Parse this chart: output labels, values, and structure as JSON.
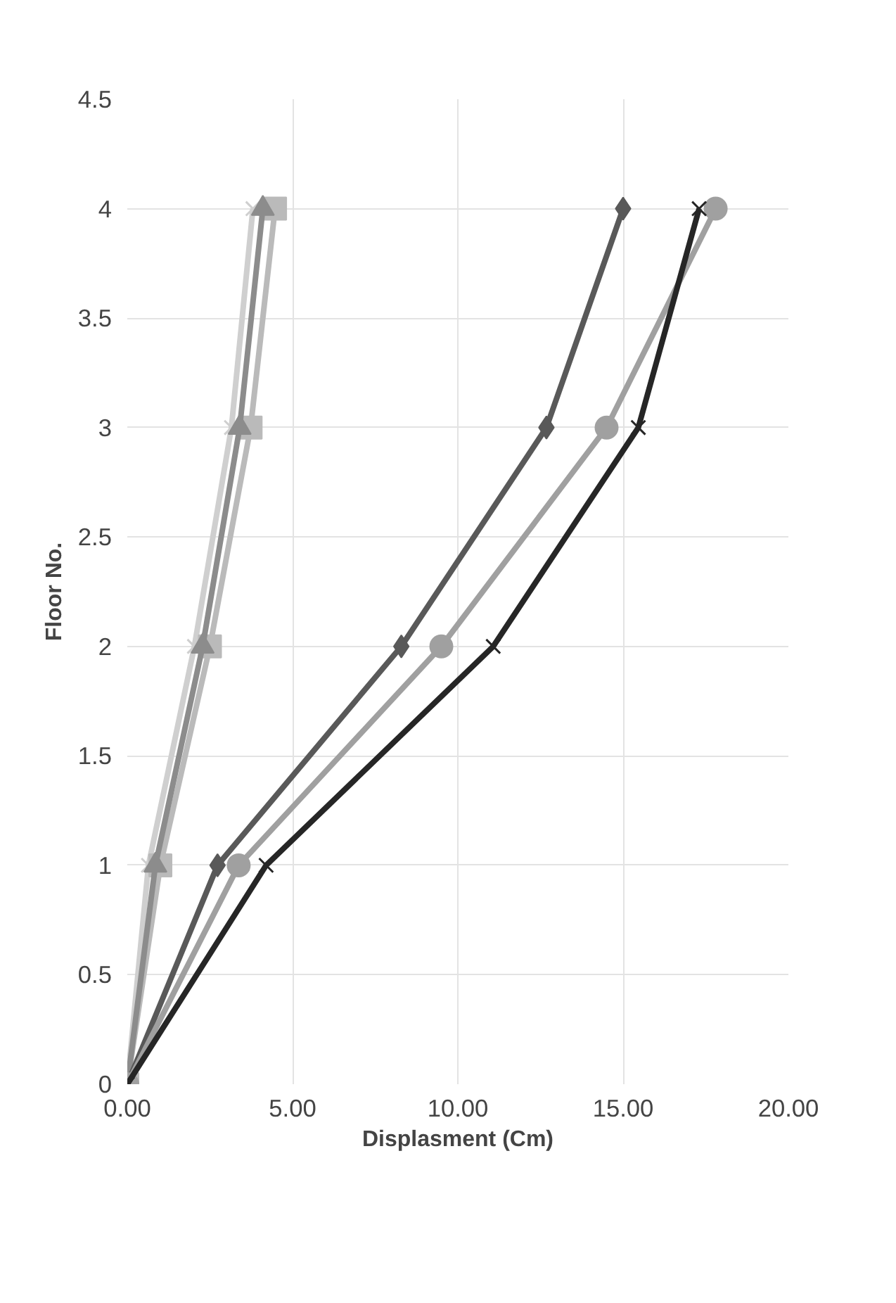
{
  "chart_data": {
    "type": "line",
    "xlabel": "Displasment (Cm)",
    "ylabel": "Floor No.",
    "xlim": [
      0,
      20
    ],
    "ylim": [
      0,
      4.5
    ],
    "xticks": [
      {
        "value": 0,
        "label": "0.00"
      },
      {
        "value": 5,
        "label": "5.00"
      },
      {
        "value": 10,
        "label": "10.00"
      },
      {
        "value": 15,
        "label": "15.00"
      },
      {
        "value": 20,
        "label": "20.00"
      }
    ],
    "yticks": [
      0,
      0.5,
      1,
      1.5,
      2,
      2.5,
      3,
      3.5,
      4,
      4.5
    ],
    "grid": true,
    "orientation": "horizontal",
    "line_style": "solid",
    "x": [
      0,
      1,
      2,
      3,
      4
    ],
    "series": [
      {
        "color": "#cfcfcf",
        "marker": "cross",
        "values": [
          0,
          0.64,
          2.03,
          3.15,
          3.8
        ]
      },
      {
        "color": "#bababa",
        "marker": "square",
        "values": [
          0,
          1.0,
          2.5,
          3.73,
          4.47
        ]
      },
      {
        "color": "#8c8c8c",
        "marker": "triangle",
        "values": [
          0,
          0.85,
          2.28,
          3.4,
          4.1
        ]
      },
      {
        "color": "#595959",
        "marker": "diamond",
        "values": [
          0,
          2.73,
          8.29,
          12.68,
          15.0
        ]
      },
      {
        "color": "#a0a0a0",
        "marker": "circle",
        "values": [
          0,
          3.37,
          9.5,
          14.5,
          17.8
        ]
      },
      {
        "color": "#262626",
        "marker": "cross",
        "values": [
          0,
          4.2,
          11.07,
          15.46,
          17.3
        ]
      }
    ]
  }
}
